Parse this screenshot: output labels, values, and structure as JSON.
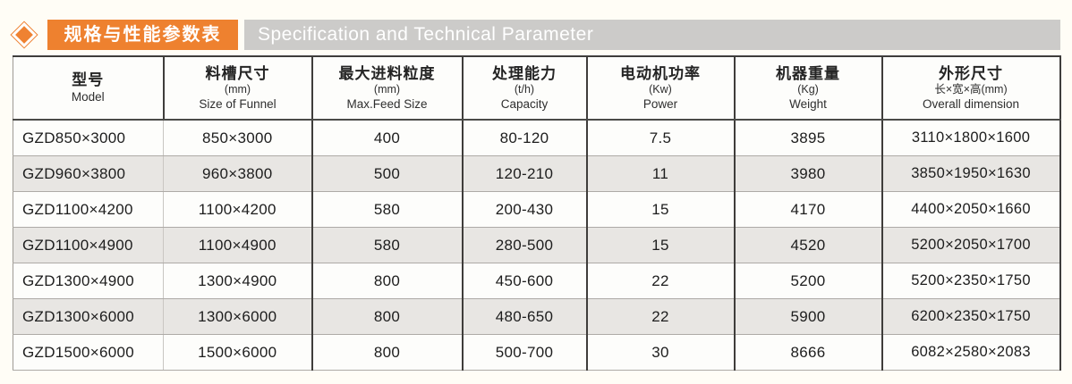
{
  "header": {
    "title_cn": "规格与性能参数表",
    "title_en": "Specification and Technical Parameter",
    "colors": {
      "accent_orange": "#ee812f",
      "title_bar_gray": "#cccbc9",
      "alt_row_gray": "#e8e6e3"
    }
  },
  "table": {
    "columns": [
      {
        "cn": "型号",
        "sub": "",
        "en": "Model"
      },
      {
        "cn": "料槽尺寸",
        "sub": "(mm)",
        "en": "Size of Funnel"
      },
      {
        "cn": "最大进料粒度",
        "sub": "(mm)",
        "en": "Max.Feed Size"
      },
      {
        "cn": "处理能力",
        "sub": "(t/h)",
        "en": "Capacity"
      },
      {
        "cn": "电动机功率",
        "sub": "(Kw)",
        "en": "Power"
      },
      {
        "cn": "机器重量",
        "sub": "(Kg)",
        "en": "Weight"
      },
      {
        "cn": "外形尺寸",
        "sub": "长×宽×高(mm)",
        "en": "Overall dimension"
      }
    ],
    "rows": [
      [
        "GZD850×3000",
        "850×3000",
        "400",
        "80-120",
        "7.5",
        "3895",
        "3110×1800×1600"
      ],
      [
        "GZD960×3800",
        "960×3800",
        "500",
        "120-210",
        "11",
        "3980",
        "3850×1950×1630"
      ],
      [
        "GZD1100×4200",
        "1100×4200",
        "580",
        "200-430",
        "15",
        "4170",
        "4400×2050×1660"
      ],
      [
        "GZD1100×4900",
        "1100×4900",
        "580",
        "280-500",
        "15",
        "4520",
        "5200×2050×1700"
      ],
      [
        "GZD1300×4900",
        "1300×4900",
        "800",
        "450-600",
        "22",
        "5200",
        "5200×2350×1750"
      ],
      [
        "GZD1300×6000",
        "1300×6000",
        "800",
        "480-650",
        "22",
        "5900",
        "6200×2350×1750"
      ],
      [
        "GZD1500×6000",
        "1500×6000",
        "800",
        "500-700",
        "30",
        "8666",
        "6082×2580×2083"
      ]
    ]
  }
}
